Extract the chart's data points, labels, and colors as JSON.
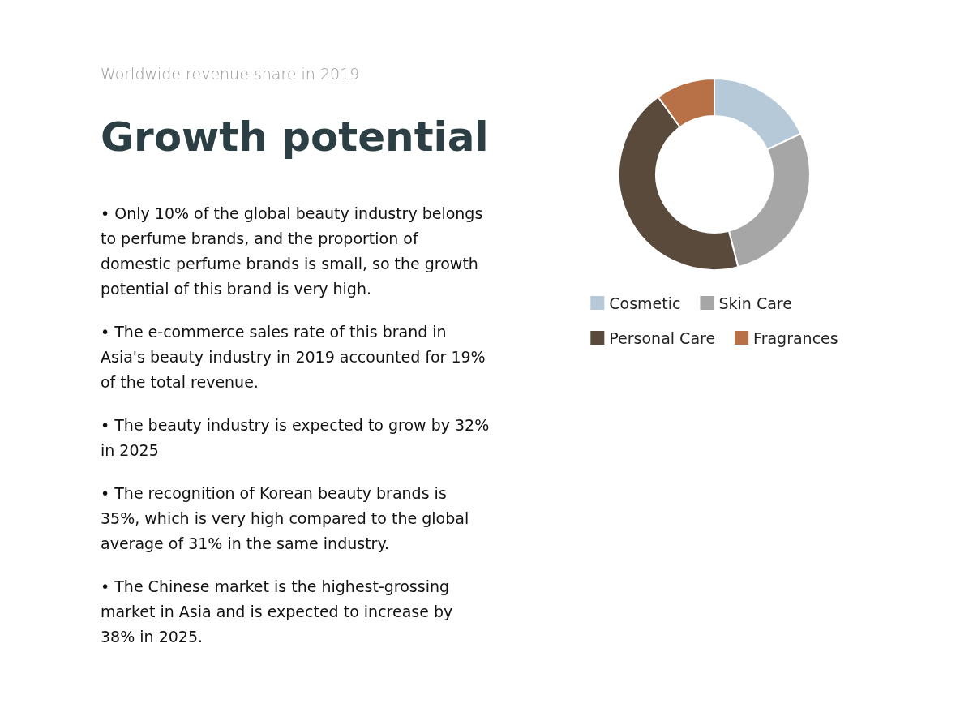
{
  "chart_data": {
    "type": "donut",
    "subtitle": "Worldwide revenue share in 2019",
    "title": "Growth potential",
    "categories": [
      "Cosmetic",
      "Skin Care",
      "Personal Care",
      "Fragrances"
    ],
    "values": [
      18,
      28,
      44,
      10
    ],
    "colors": [
      "#b5c9d8",
      "#a6a6a6",
      "#5a4a3c",
      "#b87146"
    ],
    "legend": "bottom",
    "annotations": [
      "• Only 10% of the global beauty industry belongs to perfume brands, and the proportion of domestic perfume brands is small, so the growth potential of this brand is very high.",
      "• The e-commerce sales rate of this brand in Asia's beauty industry in 2019 accounted for 19% of the total revenue.",
      "• The beauty industry is expected to grow by 32% in 2025",
      "• The recognition of Korean beauty brands is 35%, which is very high compared to the global average of 31% in the same industry.",
      "• The Chinese market is the highest-grossing market in Asia and is expected to increase by 38% in 2025."
    ]
  }
}
